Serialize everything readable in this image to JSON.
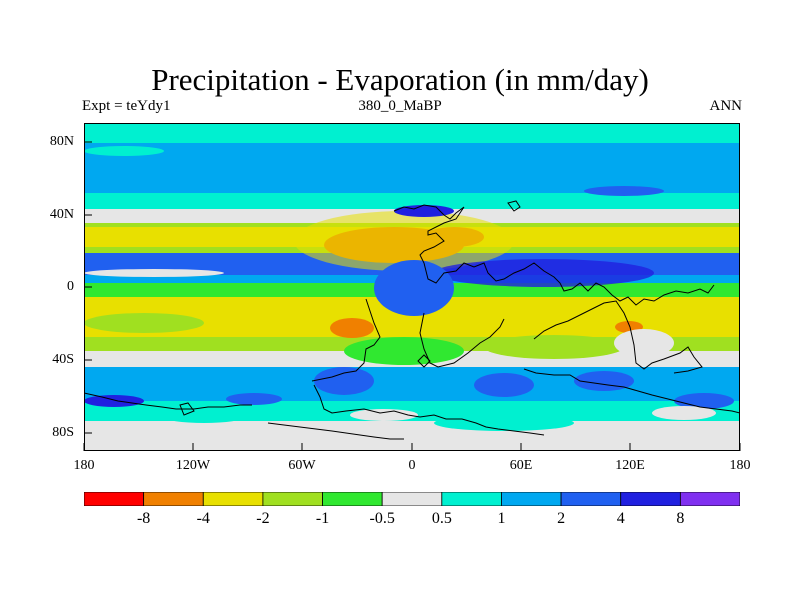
{
  "title": "Precipitation - Evaporation (in mm/day)",
  "subtitle_left": "Expt = teYdy1",
  "subtitle_center": "380_0_MaBP",
  "subtitle_right": "ANN",
  "y_ticks": [
    "80N",
    "40N",
    "0",
    "40S",
    "80S"
  ],
  "x_ticks": [
    "180",
    "120W",
    "60W",
    "0",
    "60E",
    "120E",
    "180"
  ],
  "legend": {
    "colors": [
      "#ff0000",
      "#f08000",
      "#e8e000",
      "#a0e020",
      "#30e830",
      "#e6e6e6",
      "#00f0d0",
      "#00a8f0",
      "#2060f0",
      "#2020e0",
      "#8030f0"
    ],
    "labels": [
      "-8",
      "-4",
      "-2",
      "-1",
      "-0.5",
      "0.5",
      "1",
      "2",
      "4",
      "8"
    ]
  },
  "colors": {
    "dry_strong": "#f08000",
    "dry": "#e8e000",
    "neutral": "#e6e6e6",
    "wet_light": "#00f0d0",
    "wet": "#00a8f0",
    "wet_strong": "#2060f0",
    "wet_very_strong": "#2020e0",
    "coastline": "#000000"
  }
}
